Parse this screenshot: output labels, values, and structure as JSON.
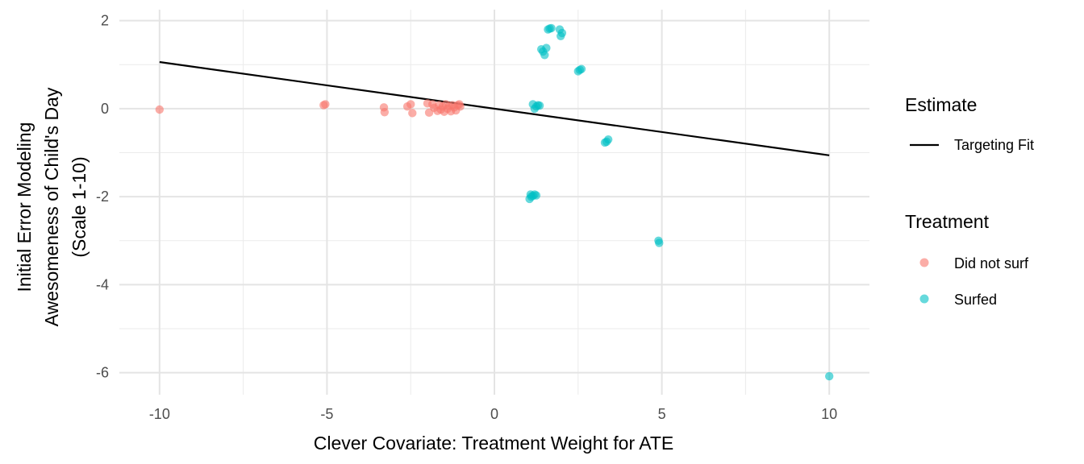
{
  "chart_data": {
    "type": "scatter",
    "title": "",
    "xlabel": "Clever Covariate: Treatment Weight for ATE",
    "ylabel_lines": [
      "Initial Error Modeling",
      "Awesomeness of Child's Day",
      "(Scale 1-10)"
    ],
    "xlim": [
      -11.2,
      11.2
    ],
    "ylim": [
      -6.5,
      2.25
    ],
    "x_ticks": [
      -10,
      -5,
      0,
      5,
      10
    ],
    "x_tick_labels": [
      "-10",
      "-5",
      "0",
      "5",
      "10"
    ],
    "y_ticks": [
      -6,
      -4,
      -2,
      0,
      2
    ],
    "y_tick_labels": [
      "-6",
      "-4",
      "-2",
      "0",
      "2"
    ],
    "grid": true,
    "legend_position": "right",
    "fit_line": {
      "name": "Targeting Fit",
      "color": "#000000",
      "points": [
        [
          -10,
          1.06
        ],
        [
          10,
          -1.06
        ]
      ]
    },
    "series": [
      {
        "name": "Did not surf",
        "color": "#F8766D",
        "points": [
          [
            -10.0,
            -0.02
          ],
          [
            -5.1,
            0.08
          ],
          [
            -5.05,
            0.1
          ],
          [
            -3.3,
            0.03
          ],
          [
            -3.28,
            -0.08
          ],
          [
            -2.6,
            0.05
          ],
          [
            -2.5,
            0.1
          ],
          [
            -2.45,
            -0.1
          ],
          [
            -2.0,
            0.12
          ],
          [
            -1.95,
            -0.09
          ],
          [
            -1.85,
            0.1
          ],
          [
            -1.8,
            0.02
          ],
          [
            -1.7,
            -0.05
          ],
          [
            -1.65,
            0.08
          ],
          [
            -1.6,
            -0.02
          ],
          [
            -1.55,
            0.05
          ],
          [
            -1.5,
            -0.07
          ],
          [
            -1.45,
            0.1
          ],
          [
            -1.4,
            0.0
          ],
          [
            -1.35,
            0.06
          ],
          [
            -1.3,
            -0.06
          ],
          [
            -1.25,
            0.08
          ],
          [
            -1.2,
            0.03
          ],
          [
            -1.15,
            -0.04
          ],
          [
            -1.1,
            0.08
          ],
          [
            -1.05,
            0.1
          ],
          [
            -1.02,
            0.05
          ]
        ]
      },
      {
        "name": "Surfed",
        "color": "#00BFC4",
        "points": [
          [
            1.05,
            -2.05
          ],
          [
            1.08,
            -1.95
          ],
          [
            1.1,
            -2.0
          ],
          [
            1.15,
            -1.98
          ],
          [
            1.2,
            -1.95
          ],
          [
            1.25,
            -1.97
          ],
          [
            1.15,
            0.1
          ],
          [
            1.2,
            0.0
          ],
          [
            1.25,
            0.05
          ],
          [
            1.3,
            0.08
          ],
          [
            1.35,
            0.07
          ],
          [
            1.4,
            1.35
          ],
          [
            1.45,
            1.3
          ],
          [
            1.5,
            1.22
          ],
          [
            1.55,
            1.38
          ],
          [
            1.6,
            1.8
          ],
          [
            1.65,
            1.82
          ],
          [
            1.7,
            1.83
          ],
          [
            1.95,
            1.8
          ],
          [
            1.98,
            1.65
          ],
          [
            2.02,
            1.72
          ],
          [
            2.5,
            0.85
          ],
          [
            2.55,
            0.88
          ],
          [
            2.6,
            0.9
          ],
          [
            3.3,
            -0.77
          ],
          [
            3.35,
            -0.75
          ],
          [
            3.4,
            -0.7
          ],
          [
            4.9,
            -3.0
          ],
          [
            4.92,
            -3.05
          ],
          [
            10.0,
            -6.08
          ]
        ]
      }
    ],
    "legend": {
      "estimate_title": "Estimate",
      "estimate_items": [
        {
          "label": "Targeting Fit",
          "color": "#000000"
        }
      ],
      "treatment_title": "Treatment",
      "treatment_items": [
        {
          "label": "Did not surf",
          "color": "#F8766D"
        },
        {
          "label": "Surfed",
          "color": "#00BFC4"
        }
      ]
    }
  }
}
